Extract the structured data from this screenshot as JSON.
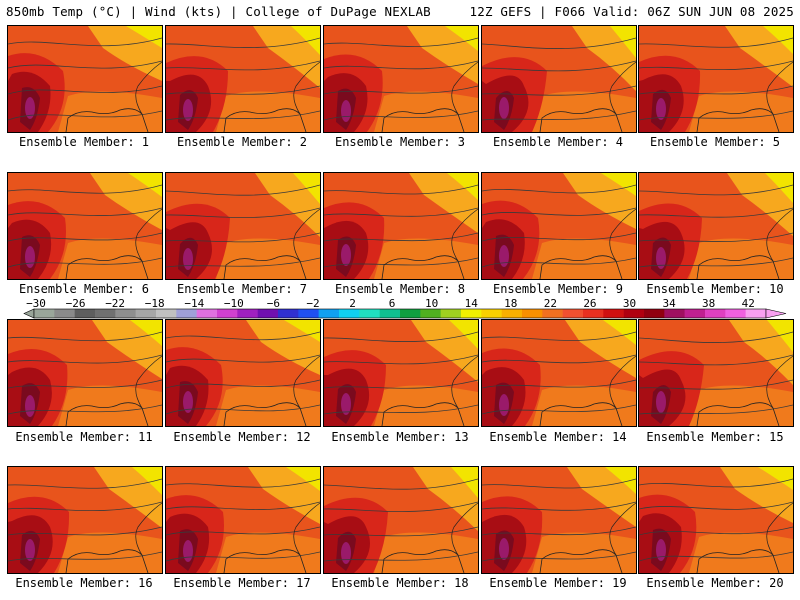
{
  "header": {
    "left": "850mb Temp (°C) | Wind (kts) | College of DuPage NEXLAB",
    "right": "12Z GEFS | F066 Valid: 06Z SUN JUN 08 2025"
  },
  "members": [
    {
      "label": "Ensemble Member: 1"
    },
    {
      "label": "Ensemble Member: 2"
    },
    {
      "label": "Ensemble Member: 3"
    },
    {
      "label": "Ensemble Member: 4"
    },
    {
      "label": "Ensemble Member: 5"
    },
    {
      "label": "Ensemble Member: 6"
    },
    {
      "label": "Ensemble Member: 7"
    },
    {
      "label": "Ensemble Member: 8"
    },
    {
      "label": "Ensemble Member: 9"
    },
    {
      "label": "Ensemble Member: 10"
    },
    {
      "label": "Ensemble Member: 11"
    },
    {
      "label": "Ensemble Member: 12"
    },
    {
      "label": "Ensemble Member: 13"
    },
    {
      "label": "Ensemble Member: 14"
    },
    {
      "label": "Ensemble Member: 15"
    },
    {
      "label": "Ensemble Member: 16"
    },
    {
      "label": "Ensemble Member: 17"
    },
    {
      "label": "Ensemble Member: 18"
    },
    {
      "label": "Ensemble Member: 19"
    },
    {
      "label": "Ensemble Member: 20"
    }
  ],
  "colorbar": {
    "tick_labels": [
      "−30",
      "−26",
      "−22",
      "−18",
      "−14",
      "−10",
      "−6",
      "−2",
      "2",
      "6",
      "10",
      "14",
      "18",
      "22",
      "26",
      "30",
      "34",
      "38",
      "42"
    ],
    "colors": [
      "#9aa69a",
      "#8a8a8a",
      "#5e5e5e",
      "#707070",
      "#8e8e8e",
      "#a6a6a6",
      "#c0c0c0",
      "#a0a0d8",
      "#e070e0",
      "#d040d0",
      "#a020c0",
      "#7010b0",
      "#3030d0",
      "#2050f0",
      "#10a0f0",
      "#10d0f0",
      "#20e0c0",
      "#10c090",
      "#10a040",
      "#50b020",
      "#a0d020",
      "#f0f000",
      "#f8d000",
      "#f8b000",
      "#f89000",
      "#f07020",
      "#f05030",
      "#e83020",
      "#d01010",
      "#b00010",
      "#900010",
      "#a01060",
      "#c02090",
      "#e040c0",
      "#f060e0",
      "#f8a0f0"
    ]
  },
  "map_colors": {
    "yellow": "#f2e400",
    "light_orange": "#f7a81e",
    "orange": "#f07a1c",
    "red_orange": "#e8541c",
    "red": "#d8261a",
    "dark_red": "#a80d14",
    "maroon": "#7a0a1e",
    "magenta": "#9a1a6a",
    "contour": "#3a3a3a"
  }
}
